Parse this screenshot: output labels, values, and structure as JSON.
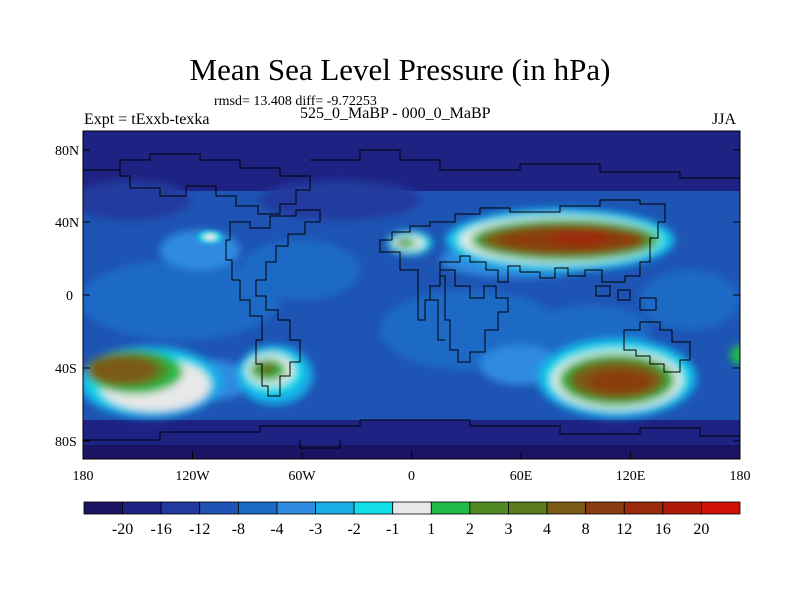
{
  "header": {
    "title": "Mean Sea Level Pressure (in hPa)",
    "stats": "rmsd= 13.408  diff= -9.72253",
    "experiment": "Expt = tExxb-texka",
    "period_diff": "525_0_MaBP - 000_0_MaBP",
    "season": "JJA"
  },
  "axes": {
    "lat_labels": [
      "80N",
      "40N",
      "0",
      "40S",
      "80S"
    ],
    "lon_labels": [
      "180",
      "120W",
      "60W",
      "0",
      "60E",
      "120E",
      "180"
    ]
  },
  "colorbar": {
    "colors": [
      "#1b1464",
      "#1e2383",
      "#203a9e",
      "#1e54b4",
      "#1a6bc6",
      "#2e8be0",
      "#19aee6",
      "#12dfe8",
      "#e8e8e8",
      "#22bb4a",
      "#4f8a25",
      "#5d7a1c",
      "#7a5a14",
      "#8a3d10",
      "#9b2a0c",
      "#b0180a",
      "#d11108"
    ],
    "labels": [
      "-20",
      "-16",
      "-12",
      "-8",
      "-4",
      "-3",
      "-2",
      "-1",
      "1",
      "2",
      "3",
      "4",
      "8",
      "12",
      "16",
      "20"
    ]
  }
}
